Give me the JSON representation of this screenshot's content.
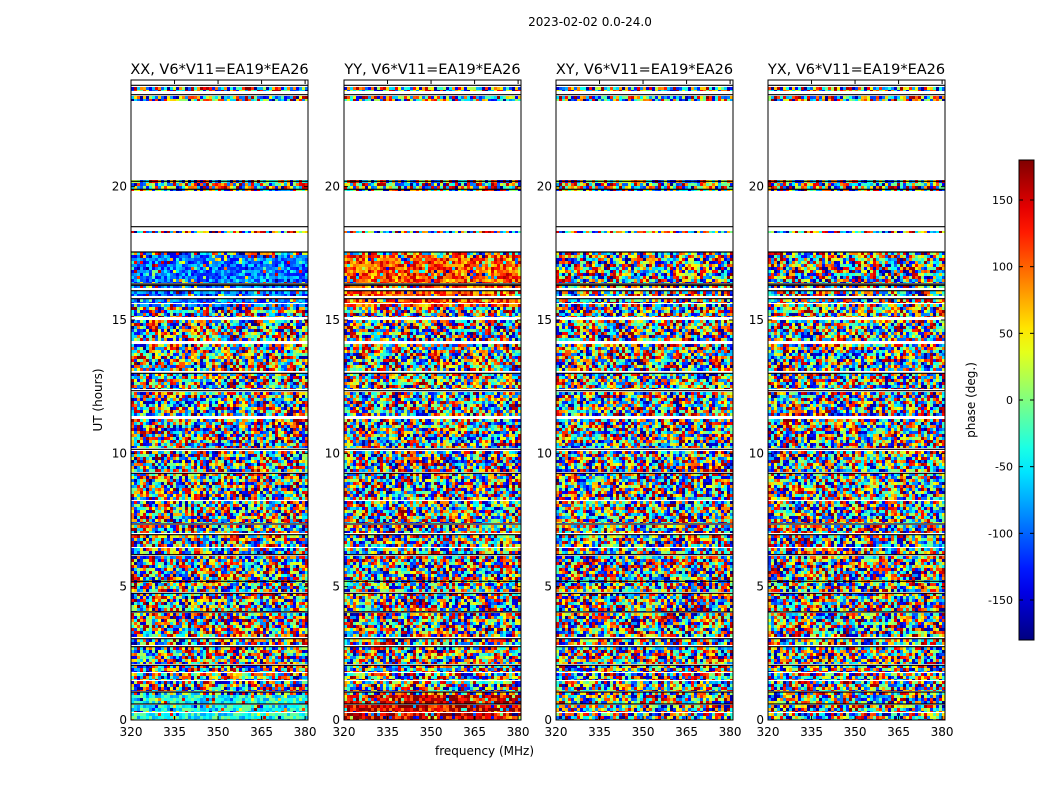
{
  "figure": {
    "suptitle": "2023-02-02 0.0-24.0"
  },
  "chart_data": [
    {
      "type": "heatmap",
      "title": "XX, V6*V11=EA19*EA26",
      "xlabel": "",
      "ylabel": "UT (hours)",
      "xlim": [
        320,
        381
      ],
      "ylim": [
        0,
        24
      ],
      "xticks": [
        320,
        335,
        350,
        365,
        380
      ],
      "yticks": [
        0,
        5,
        10,
        15,
        20
      ],
      "value": "phase (deg.)",
      "pattern": {
        "bias": {
          "from": 15.5,
          "to": 17.5,
          "center": -95,
          "spread": 45
        },
        "bias_low": {
          "from": 0.0,
          "to": 1.0,
          "center": -40,
          "spread": 45
        }
      }
    },
    {
      "type": "heatmap",
      "title": "YY, V6*V11=EA19*EA26",
      "xlabel": "frequency (MHz)",
      "ylabel": "",
      "xlim": [
        320,
        381
      ],
      "ylim": [
        0,
        24
      ],
      "xticks": [
        320,
        335,
        350,
        365,
        380
      ],
      "yticks": [
        0,
        5,
        10,
        15,
        20
      ],
      "value": "phase (deg.)",
      "pattern": {
        "bias": {
          "from": 15.5,
          "to": 17.5,
          "center": 110,
          "spread": 55
        },
        "bias_low": {
          "from": 0.0,
          "to": 1.0,
          "center": 150,
          "spread": 60
        }
      }
    },
    {
      "type": "heatmap",
      "title": "XY, V6*V11=EA19*EA26",
      "xlabel": "",
      "ylabel": "",
      "xlim": [
        320,
        381
      ],
      "ylim": [
        0,
        24
      ],
      "xticks": [
        320,
        335,
        350,
        365,
        380
      ],
      "yticks": [
        0,
        5,
        10,
        15,
        20
      ],
      "value": "phase (deg.)",
      "pattern": {}
    },
    {
      "type": "heatmap",
      "title": "YX, V6*V11=EA19*EA26",
      "xlabel": "",
      "ylabel": "",
      "xlim": [
        320,
        381
      ],
      "ylim": [
        0,
        24
      ],
      "xticks": [
        320,
        335,
        350,
        365,
        380
      ],
      "yticks": [
        0,
        5,
        10,
        15,
        20
      ],
      "value": "phase (deg.)",
      "pattern": {}
    }
  ],
  "colorbar": {
    "label": "phase (deg.)",
    "range": [
      -180,
      180
    ],
    "ticks": [
      -150,
      -100,
      -50,
      0,
      50,
      100,
      150
    ],
    "colormap": "jet"
  },
  "data_coverage": {
    "time_bands_hours": [
      [
        0.0,
        0.25
      ],
      [
        0.3,
        0.55
      ],
      [
        0.6,
        1.05
      ],
      [
        1.1,
        1.45
      ],
      [
        1.5,
        1.75
      ],
      [
        1.8,
        2.05
      ],
      [
        2.1,
        2.75
      ],
      [
        2.8,
        3.05
      ],
      [
        3.1,
        4.0
      ],
      [
        4.05,
        4.75
      ],
      [
        4.8,
        6.15
      ],
      [
        6.2,
        6.45
      ],
      [
        6.5,
        6.95
      ],
      [
        7.0,
        7.3
      ],
      [
        7.4,
        8.2
      ],
      [
        8.25,
        9.25
      ],
      [
        9.3,
        10.1
      ],
      [
        10.2,
        11.3
      ],
      [
        11.4,
        12.3
      ],
      [
        12.4,
        13.0
      ],
      [
        13.1,
        14.1
      ],
      [
        14.2,
        15.0
      ],
      [
        15.1,
        15.6
      ],
      [
        15.65,
        15.8
      ],
      [
        15.9,
        16.1
      ],
      [
        16.2,
        16.3
      ],
      [
        16.4,
        17.55
      ],
      [
        18.25,
        18.35
      ],
      [
        19.85,
        20.25
      ],
      [
        23.2,
        23.4
      ],
      [
        23.6,
        23.75
      ]
    ],
    "separator_lines_hours": [
      0.6,
      1.05,
      2.05,
      2.75,
      3.05,
      4.05,
      4.75,
      5.2,
      6.2,
      6.95,
      7.35,
      9.25,
      10.15,
      12.35,
      13.0,
      15.8,
      16.1,
      16.3,
      16.35,
      17.55,
      18.5,
      19.9,
      20.2,
      23.45,
      23.8
    ]
  }
}
